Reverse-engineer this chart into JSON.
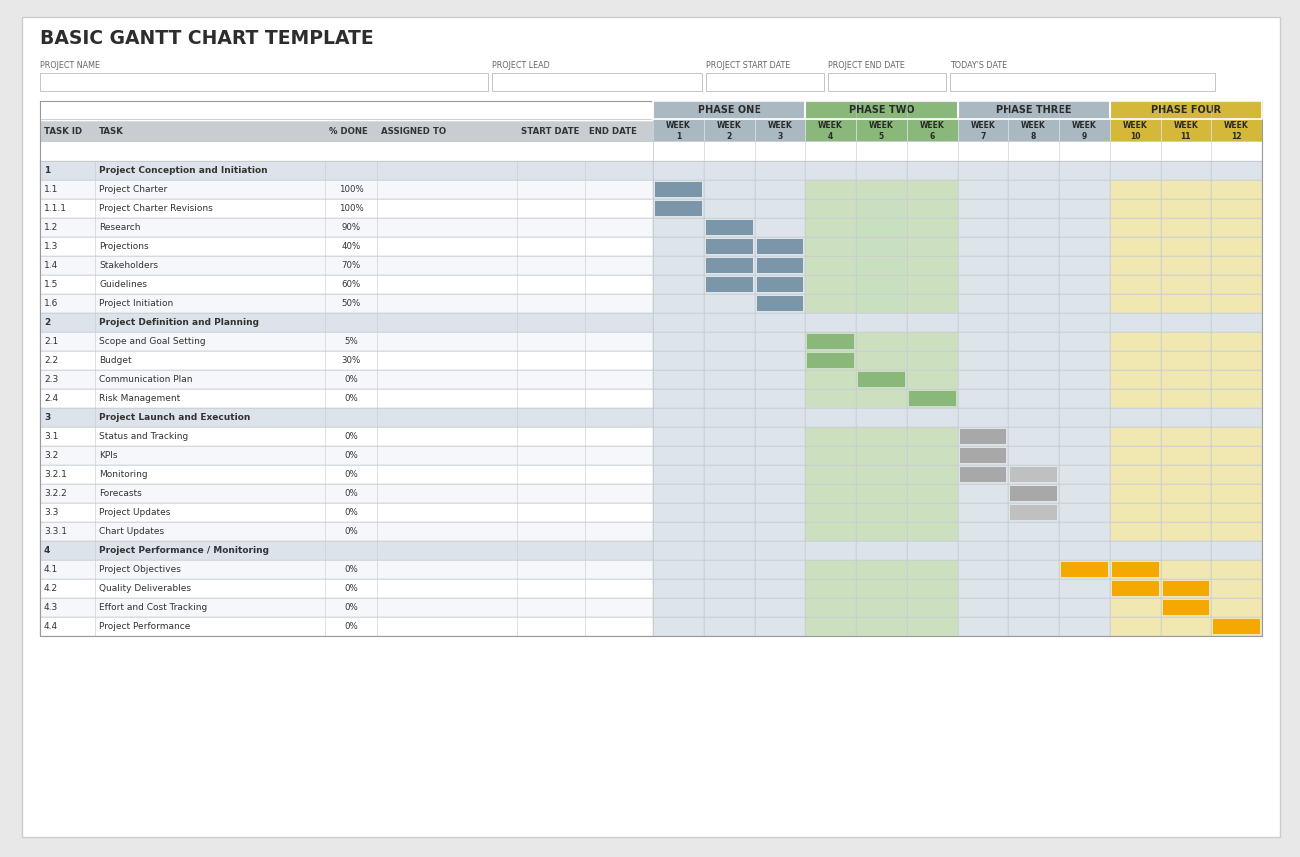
{
  "title": "BASIC GANTT CHART TEMPLATE",
  "header_fields": [
    "PROJECT NAME",
    "PROJECT LEAD",
    "PROJECT START DATE",
    "PROJECT END DATE",
    "TODAY'S DATE"
  ],
  "col_headers": [
    "TASK ID",
    "TASK",
    "% DONE",
    "ASSIGNED TO",
    "START DATE",
    "END DATE"
  ],
  "phases": [
    {
      "name": "PHASE ONE",
      "weeks": [
        1,
        2,
        3
      ]
    },
    {
      "name": "PHASE TWO",
      "weeks": [
        4,
        5,
        6
      ]
    },
    {
      "name": "PHASE THREE",
      "weeks": [
        7,
        8,
        9
      ]
    },
    {
      "name": "PHASE FOUR",
      "weeks": [
        10,
        11,
        12
      ]
    }
  ],
  "tasks": [
    {
      "id": "1",
      "task": "Project Conception and Initiation",
      "pct": "",
      "section": true
    },
    {
      "id": "1.1",
      "task": "Project Charter",
      "pct": "100%",
      "section": false
    },
    {
      "id": "1.1.1",
      "task": "Project Charter Revisions",
      "pct": "100%",
      "section": false
    },
    {
      "id": "1.2",
      "task": "Research",
      "pct": "90%",
      "section": false
    },
    {
      "id": "1.3",
      "task": "Projections",
      "pct": "40%",
      "section": false
    },
    {
      "id": "1.4",
      "task": "Stakeholders",
      "pct": "70%",
      "section": false
    },
    {
      "id": "1.5",
      "task": "Guidelines",
      "pct": "60%",
      "section": false
    },
    {
      "id": "1.6",
      "task": "Project Initiation",
      "pct": "50%",
      "section": false
    },
    {
      "id": "2",
      "task": "Project Definition and Planning",
      "pct": "",
      "section": true
    },
    {
      "id": "2.1",
      "task": "Scope and Goal Setting",
      "pct": "5%",
      "section": false
    },
    {
      "id": "2.2",
      "task": "Budget",
      "pct": "30%",
      "section": false
    },
    {
      "id": "2.3",
      "task": "Communication Plan",
      "pct": "0%",
      "section": false
    },
    {
      "id": "2.4",
      "task": "Risk Management",
      "pct": "0%",
      "section": false
    },
    {
      "id": "3",
      "task": "Project Launch and Execution",
      "pct": "",
      "section": true
    },
    {
      "id": "3.1",
      "task": "Status and Tracking",
      "pct": "0%",
      "section": false
    },
    {
      "id": "3.2",
      "task": "KPIs",
      "pct": "0%",
      "section": false
    },
    {
      "id": "3.2.1",
      "task": "Monitoring",
      "pct": "0%",
      "section": false
    },
    {
      "id": "3.2.2",
      "task": "Forecasts",
      "pct": "0%",
      "section": false
    },
    {
      "id": "3.3",
      "task": "Project Updates",
      "pct": "0%",
      "section": false
    },
    {
      "id": "3.3.1",
      "task": "Chart Updates",
      "pct": "0%",
      "section": false
    },
    {
      "id": "4",
      "task": "Project Performance / Monitoring",
      "pct": "",
      "section": true
    },
    {
      "id": "4.1",
      "task": "Project Objectives",
      "pct": "0%",
      "section": false
    },
    {
      "id": "4.2",
      "task": "Quality Deliverables",
      "pct": "0%",
      "section": false
    },
    {
      "id": "4.3",
      "task": "Effort and Cost Tracking",
      "pct": "0%",
      "section": false
    },
    {
      "id": "4.4",
      "task": "Project Performance",
      "pct": "0%",
      "section": false
    }
  ],
  "gantt_bars": [
    {
      "row": 1,
      "week": 1,
      "color": "#7a96a8"
    },
    {
      "row": 2,
      "week": 1,
      "color": "#7a96a8"
    },
    {
      "row": 2,
      "week": 5,
      "color": "#c8dfc0"
    },
    {
      "row": 3,
      "week": 2,
      "color": "#7a96a8"
    },
    {
      "row": 3,
      "week": 5,
      "color": "#c8dfc0"
    },
    {
      "row": 4,
      "week": 2,
      "color": "#7a96a8"
    },
    {
      "row": 4,
      "week": 3,
      "color": "#7a96a8"
    },
    {
      "row": 4,
      "week": 5,
      "color": "#c8dfc0"
    },
    {
      "row": 5,
      "week": 2,
      "color": "#7a96a8"
    },
    {
      "row": 5,
      "week": 3,
      "color": "#7a96a8"
    },
    {
      "row": 5,
      "week": 5,
      "color": "#c8dfc0"
    },
    {
      "row": 6,
      "week": 2,
      "color": "#7a96a8"
    },
    {
      "row": 6,
      "week": 3,
      "color": "#7a96a8"
    },
    {
      "row": 6,
      "week": 5,
      "color": "#c8dfc0"
    },
    {
      "row": 7,
      "week": 3,
      "color": "#7a96a8"
    },
    {
      "row": 7,
      "week": 5,
      "color": "#c8dfc0"
    },
    {
      "row": 9,
      "week": 4,
      "color": "#8ab87a"
    },
    {
      "row": 10,
      "week": 4,
      "color": "#8ab87a"
    },
    {
      "row": 11,
      "week": 5,
      "color": "#8ab87a"
    },
    {
      "row": 12,
      "week": 6,
      "color": "#8ab87a"
    },
    {
      "row": 14,
      "week": 7,
      "color": "#a8a8a8"
    },
    {
      "row": 15,
      "week": 7,
      "color": "#a8a8a8"
    },
    {
      "row": 16,
      "week": 7,
      "color": "#a8a8a8"
    },
    {
      "row": 16,
      "week": 8,
      "color": "#c0c0c0"
    },
    {
      "row": 17,
      "week": 8,
      "color": "#a8a8a8"
    },
    {
      "row": 18,
      "week": 8,
      "color": "#c0c0c0"
    },
    {
      "row": 21,
      "week": 9,
      "color": "#f5a800"
    },
    {
      "row": 21,
      "week": 10,
      "color": "#f5a800"
    },
    {
      "row": 22,
      "week": 10,
      "color": "#f5a800"
    },
    {
      "row": 22,
      "week": 11,
      "color": "#f5a800"
    },
    {
      "row": 23,
      "week": 11,
      "color": "#f5a800"
    },
    {
      "row": 24,
      "week": 12,
      "color": "#f5a800"
    }
  ],
  "colors": {
    "title": "#2d2d2d",
    "bg": "#e8e8e8",
    "card_bg": "#ffffff",
    "card_border": "#cccccc",
    "header_label": "#666666",
    "header_input_bg": "#ffffff",
    "header_input_border": "#bbbbbb",
    "col_header_bg": "#c8cdd2",
    "col_header_text": "#333333",
    "section_bg": "#dce3ea",
    "section_text": "#333333",
    "row_bg1": "#ffffff",
    "row_bg2": "#f5f7fa",
    "row_text": "#333333",
    "border": "#d0d5da",
    "phase1_header": "#aab8c2",
    "phase1_cell": "#dde4ea",
    "phase2_header": "#8ab87a",
    "phase2_cell": "#cce0c0",
    "phase3_header": "#aab8c2",
    "phase3_cell": "#dde4ea",
    "phase4_header": "#d4b83a",
    "phase4_cell": "#f0e8b0"
  }
}
